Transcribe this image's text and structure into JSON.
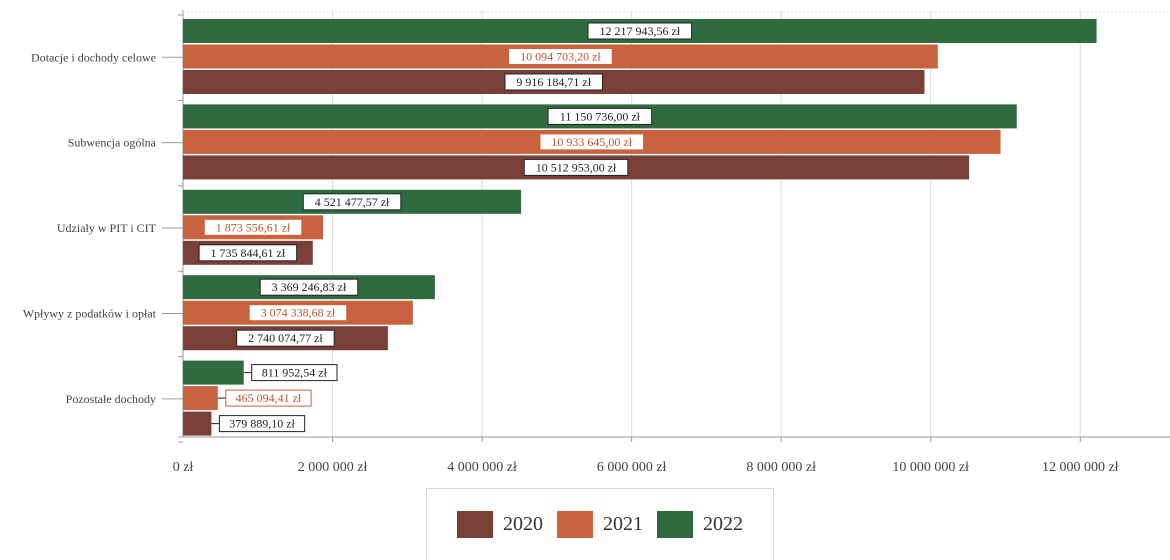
{
  "chart_data": {
    "type": "bar",
    "orientation": "horizontal",
    "categories": [
      "Dotacje i dochody celowe",
      "Subwencja ogólna",
      "Udziały w PIT i CIT",
      "Wpływy z podatków i opłat",
      "Pozostałe dochody"
    ],
    "series": [
      {
        "name": "2022",
        "color": "#2f6b3f",
        "values": [
          12217943.56,
          11150736.0,
          4521477.57,
          3369246.83,
          811952.54
        ],
        "labels": [
          "12 217 943,56 zł",
          "11 150 736,00 zł",
          "4 521 477,57 zł",
          "3 369 246,83 zł",
          "811 952,54 zł"
        ]
      },
      {
        "name": "2021",
        "color": "#c8623f",
        "values": [
          10094703.2,
          10933645.0,
          1873556.61,
          3074338.68,
          465094.41
        ],
        "labels": [
          "10 094 703,20 zł",
          "10 933 645,00 zł",
          "1 873 556,61 zł",
          "3 074 338,68 zł",
          "465 094,41 zł"
        ]
      },
      {
        "name": "2020",
        "color": "#7a4038",
        "values": [
          9916184.71,
          10512953.0,
          1735844.61,
          2740074.77,
          379889.1
        ],
        "labels": [
          "9 916 184,71 zł",
          "10 512 953,00 zł",
          "1 735 844,61 zł",
          "2 740 074,77 zł",
          "379 889,10 zł"
        ]
      }
    ],
    "x_ticks": [
      "0 zł",
      "2 000 000 zł",
      "4 000 000 zł",
      "6 000 000 zł",
      "8 000 000 zł",
      "10 000 000 zł",
      "12 000 000 zł"
    ],
    "xlim": [
      0,
      13200000
    ],
    "grid": true,
    "legend_position": "bottom",
    "legend_order": [
      "2020",
      "2021",
      "2022"
    ]
  }
}
